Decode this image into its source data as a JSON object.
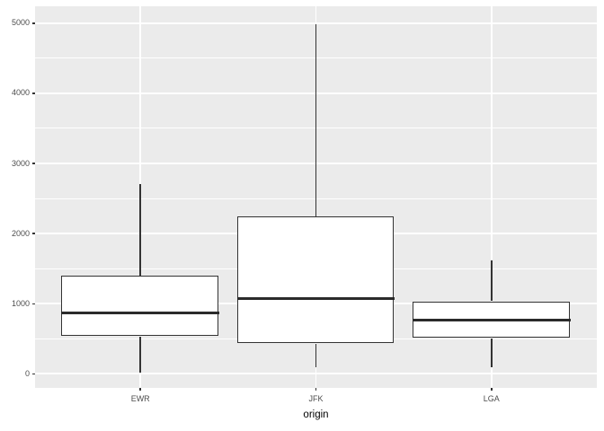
{
  "chart_data": {
    "type": "boxplot",
    "title": "",
    "xlabel": "origin",
    "ylabel": "",
    "categories": [
      "EWR",
      "JFK",
      "LGA"
    ],
    "series": [
      {
        "name": "EWR",
        "min": 20,
        "q1": 535,
        "median": 875,
        "q3": 1400,
        "max": 2700
      },
      {
        "name": "JFK",
        "min": 95,
        "q1": 430,
        "median": 1070,
        "q3": 2250,
        "max": 4980
      },
      {
        "name": "LGA",
        "min": 100,
        "q1": 500,
        "median": 762,
        "q3": 1035,
        "max": 1620
      }
    ],
    "y_ticks": [
      0,
      1000,
      2000,
      3000,
      4000,
      5000
    ],
    "y_minor_ticks": [
      500,
      1500,
      2500,
      3500,
      4500
    ],
    "ylim": [
      -200,
      5240
    ],
    "x_positions": [
      1,
      2,
      3
    ],
    "x_range": [
      0.4,
      3.6
    ],
    "box_width_units": 0.9,
    "grid": true,
    "legend": false
  },
  "colors": {
    "panel_bg": "#ebebeb",
    "grid_major": "#ffffff",
    "grid_minor": "#ffffff",
    "box_stroke": "#333333",
    "box_fill": "#ffffff",
    "median": "#2b2b2b",
    "tick_mark": "#333333",
    "tick_text": "#4d4d4d",
    "axis_title": "#000000",
    "figure_bg": "#ffffff"
  }
}
